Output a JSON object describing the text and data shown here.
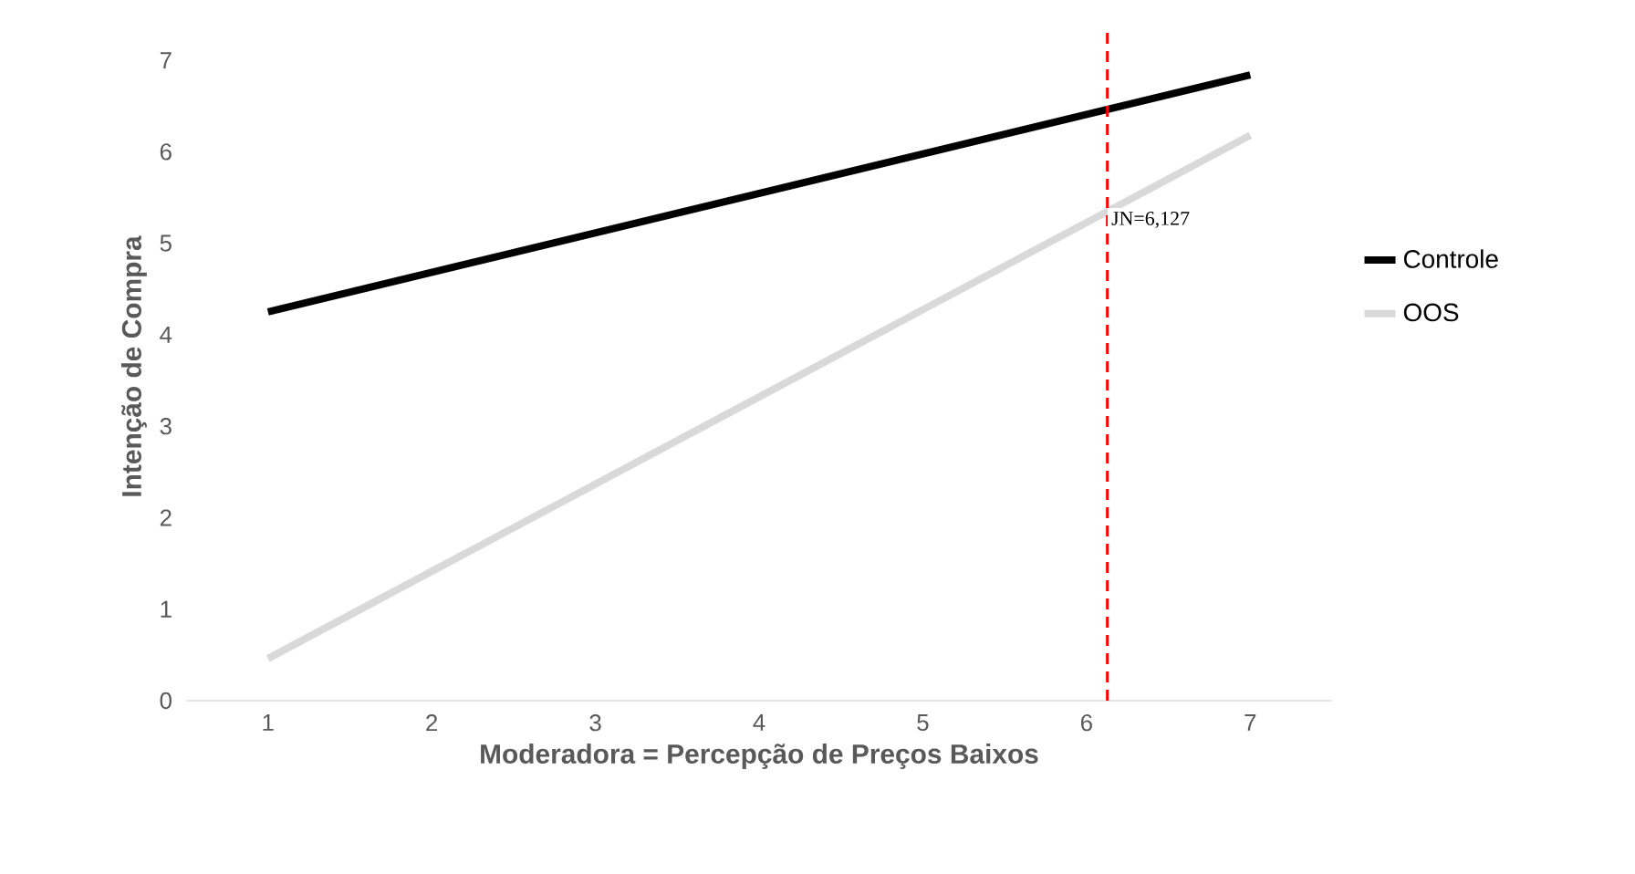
{
  "chart_data": {
    "type": "line",
    "xlabel": "Moderadora = Percepção de Preços Baixos",
    "ylabel": "Intenção de Compra",
    "x": [
      1,
      7
    ],
    "xlim": [
      0.5,
      7.5
    ],
    "xticks": [
      1,
      2,
      3,
      4,
      5,
      6,
      7
    ],
    "ylim": [
      0,
      7.3
    ],
    "yticks": [
      0,
      1,
      2,
      3,
      4,
      5,
      6,
      7
    ],
    "series": [
      {
        "name": "Controle",
        "color": "#000000",
        "values": [
          4.25,
          6.84
        ]
      },
      {
        "name": "OOS",
        "color": "#d9d9d9",
        "values": [
          0.46,
          6.18
        ]
      }
    ],
    "ref_lines": [
      {
        "axis": "x",
        "value": 6.127,
        "label": "JN=6,127",
        "color": "#ff0000",
        "line_style": "dashed"
      }
    ],
    "legend": "right",
    "grid": false
  }
}
